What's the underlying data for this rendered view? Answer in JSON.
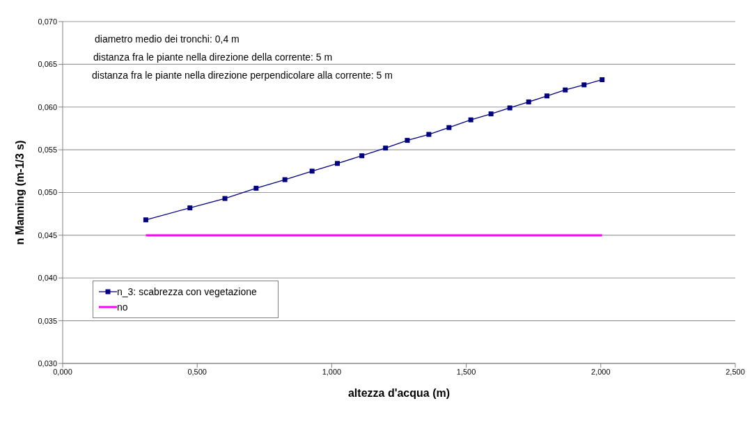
{
  "chart_data": {
    "type": "line",
    "xlabel": "altezza d'acqua (m)",
    "ylabel": "n Manning (m-1/3 s)",
    "annotations": [
      "diametro medio dei tronchi: 0,4 m",
      "distanza fra le piante nella direzione della corrente: 5 m",
      "distanza fra le piante nella direzione perpendicolare alla corrente: 5 m"
    ],
    "series": [
      {
        "name": "n_3: scabrezza con vegetazione",
        "color": "#000080",
        "marker": "square",
        "x": [
          0.309,
          0.473,
          0.603,
          0.719,
          0.826,
          0.927,
          1.021,
          1.112,
          1.2,
          1.281,
          1.361,
          1.436,
          1.517,
          1.592,
          1.662,
          1.732,
          1.8,
          1.868,
          1.938,
          2.005
        ],
        "values": [
          0.0468,
          0.0482,
          0.0493,
          0.0505,
          0.0515,
          0.0525,
          0.0534,
          0.0543,
          0.0552,
          0.0561,
          0.0568,
          0.0576,
          0.0585,
          0.0592,
          0.0599,
          0.0606,
          0.0613,
          0.062,
          0.0626,
          0.0632
        ]
      },
      {
        "name": "no",
        "color": "#ff00ff",
        "marker": "none",
        "x": [
          0.309,
          2.005
        ],
        "values": [
          0.045,
          0.045
        ]
      }
    ],
    "xlim": [
      0,
      2.5
    ],
    "xticks": [
      {
        "value": 0,
        "label": "0,000"
      },
      {
        "value": 0.5,
        "label": "0,500"
      },
      {
        "value": 1,
        "label": "1,000"
      },
      {
        "value": 1.5,
        "label": "1,500"
      },
      {
        "value": 2,
        "label": "2,000"
      },
      {
        "value": 2.5,
        "label": "2,500"
      }
    ],
    "ylim": [
      0.03,
      0.07
    ],
    "yticks": [
      {
        "value": 0.03,
        "label": "0,030"
      },
      {
        "value": 0.035,
        "label": "0,035"
      },
      {
        "value": 0.04,
        "label": "0,040"
      },
      {
        "value": 0.045,
        "label": "0,045"
      },
      {
        "value": 0.05,
        "label": "0,050"
      },
      {
        "value": 0.055,
        "label": "0,055"
      },
      {
        "value": 0.06,
        "label": "0,060"
      },
      {
        "value": 0.065,
        "label": "0,065"
      },
      {
        "value": 0.07,
        "label": "0,070"
      }
    ],
    "grid": "y",
    "legend": "left",
    "line_style": "solid"
  }
}
